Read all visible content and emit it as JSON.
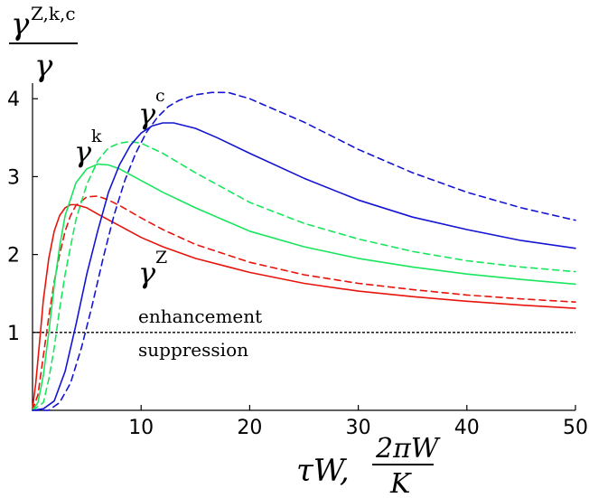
{
  "chart_data": {
    "type": "line",
    "y_label": {
      "base": "γ",
      "superscript": "Z,k,c",
      "denominator": "γ"
    },
    "x_label": {
      "prefix": "τW,",
      "fraction_numerator": "2πW",
      "fraction_denominator": "K"
    },
    "xlim": [
      0,
      50
    ],
    "ylim": [
      0,
      4.2
    ],
    "x_ticks": [
      10,
      20,
      30,
      40,
      50
    ],
    "y_ticks": [
      1,
      2,
      3,
      4
    ],
    "x_tick_labels": [
      "10",
      "20",
      "30",
      "40",
      "50"
    ],
    "y_tick_labels": [
      "1",
      "2",
      "3",
      "4"
    ],
    "reference_line": {
      "y": 1,
      "style": "dashed",
      "color": "#000000"
    },
    "annotations": {
      "above_line": "enhancement",
      "below_line": "suppression"
    },
    "curve_labels": [
      {
        "base": "γ",
        "sup": "c",
        "series": "c"
      },
      {
        "base": "γ",
        "sup": "k",
        "series": "k"
      },
      {
        "base": "γ",
        "sup": "Z",
        "series": "Z"
      }
    ],
    "series": [
      {
        "id": "Z",
        "color": "#e8140c",
        "style": "solid",
        "x": [
          0,
          0.3,
          0.7,
          1.0,
          1.5,
          2.0,
          2.5,
          3.0,
          3.5,
          4.0,
          5.0,
          6.0,
          8.0,
          10.0,
          12.0,
          15.0,
          20.0,
          25.0,
          30.0,
          35.0,
          40.0,
          45.0,
          50.0
        ],
        "y": [
          0.02,
          0.35,
          0.95,
          1.42,
          1.95,
          2.3,
          2.5,
          2.6,
          2.64,
          2.64,
          2.6,
          2.52,
          2.37,
          2.22,
          2.1,
          1.95,
          1.77,
          1.63,
          1.53,
          1.46,
          1.4,
          1.35,
          1.31
        ]
      },
      {
        "id": "Z-dashed",
        "color": "#e8140c",
        "style": "dashed",
        "x": [
          0,
          0.5,
          1.0,
          1.5,
          2.0,
          2.5,
          3.0,
          3.5,
          4.0,
          5.0,
          6.0,
          7.0,
          8.0,
          10.0,
          12.0,
          15.0,
          20.0,
          25.0,
          30.0,
          35.0,
          40.0,
          45.0,
          50.0
        ],
        "y": [
          0.0,
          0.2,
          0.7,
          1.2,
          1.65,
          2.0,
          2.3,
          2.5,
          2.63,
          2.74,
          2.75,
          2.7,
          2.63,
          2.47,
          2.32,
          2.13,
          1.9,
          1.74,
          1.63,
          1.55,
          1.48,
          1.43,
          1.39
        ]
      },
      {
        "id": "k",
        "color": "#19e65e",
        "style": "solid",
        "x": [
          0,
          0.5,
          1.0,
          1.5,
          2.0,
          2.5,
          3.0,
          4.0,
          5.0,
          6.0,
          7.0,
          8.0,
          10.0,
          12.0,
          15.0,
          20.0,
          25.0,
          30.0,
          35.0,
          40.0,
          45.0,
          50.0
        ],
        "y": [
          0.0,
          0.1,
          0.45,
          1.0,
          1.6,
          2.1,
          2.5,
          2.92,
          3.1,
          3.16,
          3.15,
          3.1,
          2.95,
          2.8,
          2.6,
          2.3,
          2.1,
          1.95,
          1.84,
          1.75,
          1.68,
          1.62
        ]
      },
      {
        "id": "k-dashed",
        "color": "#19e65e",
        "style": "dashed",
        "x": [
          0,
          1.0,
          1.5,
          2.0,
          2.5,
          3.0,
          4.0,
          5.0,
          6.0,
          7.0,
          8.0,
          9.0,
          10.0,
          12.0,
          15.0,
          20.0,
          25.0,
          30.0,
          35.0,
          40.0,
          45.0,
          50.0
        ],
        "y": [
          0.0,
          0.1,
          0.4,
          0.8,
          1.3,
          1.75,
          2.45,
          2.9,
          3.2,
          3.37,
          3.43,
          3.45,
          3.43,
          3.3,
          3.05,
          2.67,
          2.4,
          2.2,
          2.04,
          1.92,
          1.84,
          1.78
        ]
      },
      {
        "id": "c",
        "color": "#1414d2",
        "style": "solid",
        "x": [
          0,
          1.0,
          2.0,
          3.0,
          4.0,
          5.0,
          6.0,
          7.0,
          8.0,
          9.0,
          10.0,
          11.0,
          12.0,
          13.0,
          15.0,
          17.0,
          20.0,
          25.0,
          30.0,
          35.0,
          40.0,
          45.0,
          50.0
        ],
        "y": [
          0.0,
          0.02,
          0.12,
          0.5,
          1.1,
          1.75,
          2.3,
          2.8,
          3.15,
          3.4,
          3.56,
          3.65,
          3.69,
          3.69,
          3.62,
          3.5,
          3.3,
          2.98,
          2.7,
          2.48,
          2.32,
          2.18,
          2.08
        ]
      },
      {
        "id": "c-dashed",
        "color": "#1414d2",
        "style": "dashed",
        "x": [
          0,
          1.5,
          2.5,
          3.5,
          4.5,
          5.5,
          6.5,
          7.5,
          8.5,
          9.5,
          10.5,
          11.5,
          12.5,
          13.5,
          15.0,
          16.5,
          18.0,
          20.0,
          22.5,
          25.0,
          30.0,
          35.0,
          40.0,
          45.0,
          50.0
        ],
        "y": [
          0.0,
          0.0,
          0.1,
          0.35,
          0.8,
          1.35,
          1.95,
          2.5,
          2.95,
          3.3,
          3.57,
          3.76,
          3.9,
          3.98,
          4.05,
          4.08,
          4.08,
          4.0,
          3.85,
          3.7,
          3.35,
          3.05,
          2.8,
          2.6,
          2.44
        ]
      }
    ]
  }
}
